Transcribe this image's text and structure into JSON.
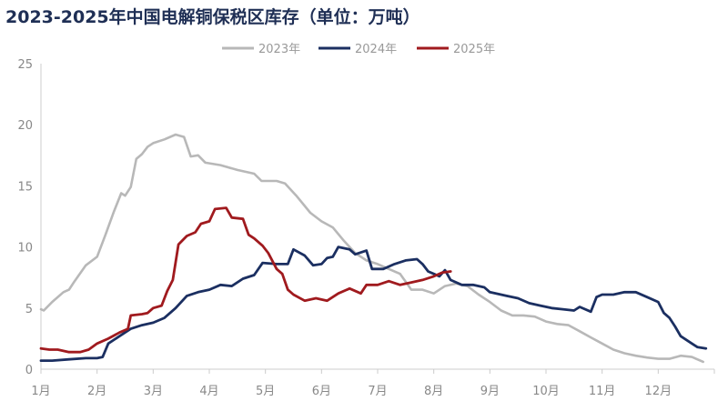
{
  "chart_data": {
    "type": "line",
    "title": "2023-2025年中国电解铜保税区库存（单位：万吨）",
    "ylim": [
      0,
      25
    ],
    "yticks": [
      "0",
      "5",
      "10",
      "15",
      "20",
      "25"
    ],
    "xticks": [
      "1月",
      "2月",
      "3月",
      "4月",
      "5月",
      "6月",
      "7月",
      "8月",
      "9月",
      "10月",
      "11月",
      "12月"
    ],
    "legend_position": "top-center",
    "grid": false,
    "series": [
      {
        "name": "2023年",
        "color": "#b8b8b8",
        "points": [
          [
            0,
            4.9
          ],
          [
            0.05,
            4.8
          ],
          [
            0.2,
            5.5
          ],
          [
            0.4,
            6.3
          ],
          [
            0.5,
            6.5
          ],
          [
            0.6,
            7.2
          ],
          [
            0.8,
            8.5
          ],
          [
            1.0,
            9.2
          ],
          [
            1.15,
            11.0
          ],
          [
            1.3,
            12.9
          ],
          [
            1.43,
            14.4
          ],
          [
            1.5,
            14.2
          ],
          [
            1.6,
            14.9
          ],
          [
            1.7,
            17.2
          ],
          [
            1.8,
            17.6
          ],
          [
            1.9,
            18.2
          ],
          [
            2.0,
            18.5
          ],
          [
            2.2,
            18.8
          ],
          [
            2.4,
            19.2
          ],
          [
            2.55,
            19.0
          ],
          [
            2.67,
            17.4
          ],
          [
            2.8,
            17.5
          ],
          [
            2.93,
            16.9
          ],
          [
            3.2,
            16.7
          ],
          [
            3.5,
            16.3
          ],
          [
            3.8,
            16.0
          ],
          [
            3.93,
            15.4
          ],
          [
            4.2,
            15.4
          ],
          [
            4.35,
            15.2
          ],
          [
            4.55,
            14.2
          ],
          [
            4.8,
            12.8
          ],
          [
            5.0,
            12.1
          ],
          [
            5.2,
            11.6
          ],
          [
            5.4,
            10.5
          ],
          [
            5.6,
            9.5
          ],
          [
            5.8,
            8.9
          ],
          [
            6.0,
            8.6
          ],
          [
            6.2,
            8.2
          ],
          [
            6.4,
            7.8
          ],
          [
            6.6,
            6.5
          ],
          [
            6.8,
            6.5
          ],
          [
            7.0,
            6.2
          ],
          [
            7.2,
            6.8
          ],
          [
            7.4,
            7.0
          ],
          [
            7.6,
            6.8
          ],
          [
            7.8,
            6.1
          ],
          [
            8.0,
            5.5
          ],
          [
            8.2,
            4.8
          ],
          [
            8.4,
            4.4
          ],
          [
            8.6,
            4.4
          ],
          [
            8.8,
            4.3
          ],
          [
            9.0,
            3.9
          ],
          [
            9.2,
            3.7
          ],
          [
            9.4,
            3.6
          ],
          [
            9.6,
            3.1
          ],
          [
            9.8,
            2.6
          ],
          [
            10.0,
            2.1
          ],
          [
            10.2,
            1.6
          ],
          [
            10.4,
            1.3
          ],
          [
            10.6,
            1.1
          ],
          [
            10.8,
            0.95
          ],
          [
            11.0,
            0.85
          ],
          [
            11.2,
            0.85
          ],
          [
            11.4,
            1.1
          ],
          [
            11.6,
            1.0
          ],
          [
            11.8,
            0.6
          ]
        ]
      },
      {
        "name": "2024年",
        "color": "#1b2f61",
        "points": [
          [
            0,
            0.7
          ],
          [
            0.2,
            0.7
          ],
          [
            0.5,
            0.8
          ],
          [
            0.8,
            0.9
          ],
          [
            1.0,
            0.9
          ],
          [
            1.1,
            1.0
          ],
          [
            1.2,
            2.1
          ],
          [
            1.4,
            2.7
          ],
          [
            1.6,
            3.3
          ],
          [
            1.8,
            3.6
          ],
          [
            2.0,
            3.8
          ],
          [
            2.2,
            4.2
          ],
          [
            2.4,
            5.0
          ],
          [
            2.6,
            6.0
          ],
          [
            2.8,
            6.3
          ],
          [
            3.0,
            6.5
          ],
          [
            3.2,
            6.9
          ],
          [
            3.4,
            6.8
          ],
          [
            3.6,
            7.4
          ],
          [
            3.8,
            7.7
          ],
          [
            3.95,
            8.7
          ],
          [
            4.2,
            8.6
          ],
          [
            4.4,
            8.6
          ],
          [
            4.5,
            9.8
          ],
          [
            4.7,
            9.3
          ],
          [
            4.85,
            8.5
          ],
          [
            5.0,
            8.6
          ],
          [
            5.1,
            9.1
          ],
          [
            5.2,
            9.2
          ],
          [
            5.3,
            10.0
          ],
          [
            5.5,
            9.8
          ],
          [
            5.6,
            9.4
          ],
          [
            5.8,
            9.7
          ],
          [
            5.9,
            8.2
          ],
          [
            6.1,
            8.2
          ],
          [
            6.3,
            8.6
          ],
          [
            6.5,
            8.9
          ],
          [
            6.7,
            9.0
          ],
          [
            6.8,
            8.6
          ],
          [
            6.9,
            8.0
          ],
          [
            7.0,
            7.8
          ],
          [
            7.1,
            7.6
          ],
          [
            7.2,
            8.1
          ],
          [
            7.3,
            7.3
          ],
          [
            7.5,
            6.9
          ],
          [
            7.7,
            6.9
          ],
          [
            7.9,
            6.7
          ],
          [
            8.0,
            6.3
          ],
          [
            8.3,
            6.0
          ],
          [
            8.5,
            5.8
          ],
          [
            8.7,
            5.4
          ],
          [
            8.9,
            5.2
          ],
          [
            9.1,
            5.0
          ],
          [
            9.3,
            4.9
          ],
          [
            9.5,
            4.8
          ],
          [
            9.6,
            5.1
          ],
          [
            9.8,
            4.7
          ],
          [
            9.9,
            5.9
          ],
          [
            10.0,
            6.1
          ],
          [
            10.2,
            6.1
          ],
          [
            10.4,
            6.3
          ],
          [
            10.6,
            6.3
          ],
          [
            10.8,
            5.9
          ],
          [
            11.0,
            5.5
          ],
          [
            11.1,
            4.6
          ],
          [
            11.2,
            4.2
          ],
          [
            11.3,
            3.5
          ],
          [
            11.4,
            2.7
          ],
          [
            11.6,
            2.1
          ],
          [
            11.7,
            1.8
          ],
          [
            11.85,
            1.7
          ]
        ]
      },
      {
        "name": "2025年",
        "color": "#a01a1e",
        "points": [
          [
            0,
            1.7
          ],
          [
            0.15,
            1.6
          ],
          [
            0.3,
            1.6
          ],
          [
            0.5,
            1.4
          ],
          [
            0.7,
            1.4
          ],
          [
            0.85,
            1.6
          ],
          [
            1.0,
            2.1
          ],
          [
            1.2,
            2.5
          ],
          [
            1.4,
            3.0
          ],
          [
            1.55,
            3.3
          ],
          [
            1.6,
            4.4
          ],
          [
            1.8,
            4.5
          ],
          [
            1.9,
            4.6
          ],
          [
            2.0,
            5.0
          ],
          [
            2.15,
            5.2
          ],
          [
            2.25,
            6.4
          ],
          [
            2.35,
            7.3
          ],
          [
            2.45,
            10.2
          ],
          [
            2.6,
            10.9
          ],
          [
            2.75,
            11.2
          ],
          [
            2.85,
            11.9
          ],
          [
            3.0,
            12.1
          ],
          [
            3.1,
            13.1
          ],
          [
            3.3,
            13.2
          ],
          [
            3.4,
            12.4
          ],
          [
            3.6,
            12.3
          ],
          [
            3.7,
            11.0
          ],
          [
            3.8,
            10.7
          ],
          [
            3.95,
            10.1
          ],
          [
            4.05,
            9.5
          ],
          [
            4.2,
            8.2
          ],
          [
            4.3,
            7.8
          ],
          [
            4.4,
            6.5
          ],
          [
            4.5,
            6.1
          ],
          [
            4.7,
            5.6
          ],
          [
            4.9,
            5.8
          ],
          [
            5.1,
            5.6
          ],
          [
            5.3,
            6.2
          ],
          [
            5.5,
            6.6
          ],
          [
            5.7,
            6.2
          ],
          [
            5.8,
            6.9
          ],
          [
            6.0,
            6.9
          ],
          [
            6.2,
            7.2
          ],
          [
            6.4,
            6.9
          ],
          [
            6.6,
            7.1
          ],
          [
            6.8,
            7.3
          ],
          [
            7.0,
            7.6
          ],
          [
            7.15,
            7.9
          ],
          [
            7.3,
            8.0
          ]
        ]
      }
    ]
  }
}
